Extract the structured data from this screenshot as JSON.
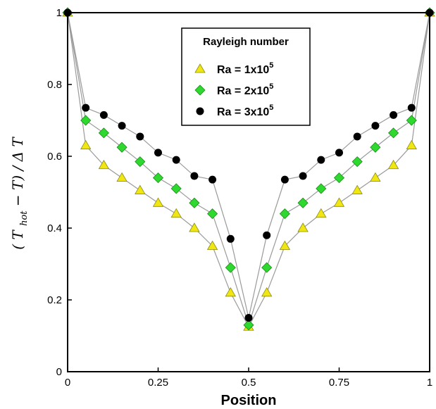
{
  "chart_data": {
    "type": "line",
    "title": "",
    "xlabel": "Position",
    "ylabel": "(T_hot − T) / ΔT",
    "ylabel_parts": {
      "open": "(",
      "T": "T",
      "sub": "hot",
      "rest": " − T) / Δ T"
    },
    "xlim": [
      0,
      1
    ],
    "ylim": [
      0,
      1
    ],
    "xticks": [
      0,
      0.25,
      0.5,
      0.75,
      1
    ],
    "xtick_labels": [
      "0",
      "0.25",
      "0.5",
      "0.75",
      "1"
    ],
    "yticks": [
      0,
      0.2,
      0.4,
      0.6,
      0.8,
      1
    ],
    "ytick_labels": [
      "0",
      "0.2",
      "0.4",
      "0.6",
      "0.8",
      "1"
    ],
    "grid": false,
    "legend": {
      "title": "Rayleigh number",
      "placement": "top-center"
    },
    "x": [
      0,
      0.05,
      0.1,
      0.15,
      0.2,
      0.25,
      0.3,
      0.35,
      0.4,
      0.45,
      0.5,
      0.55,
      0.6,
      0.65,
      0.7,
      0.75,
      0.8,
      0.85,
      0.9,
      0.95,
      1
    ],
    "series": [
      {
        "name": "Ra = 1x10^5",
        "label_base": "Ra = 1x10",
        "label_exp": "5",
        "marker": "triangle",
        "color": "#f0e614",
        "values": [
          1,
          0.63,
          0.575,
          0.54,
          0.505,
          0.47,
          0.44,
          0.4,
          0.35,
          0.22,
          0.125,
          0.22,
          0.35,
          0.4,
          0.44,
          0.47,
          0.505,
          0.54,
          0.575,
          0.63,
          1
        ]
      },
      {
        "name": "Ra = 2x10^5",
        "label_base": "Ra = 2x10",
        "label_exp": "5",
        "marker": "diamond",
        "color": "#2ed82e",
        "values": [
          1,
          0.7,
          0.665,
          0.625,
          0.585,
          0.54,
          0.51,
          0.47,
          0.44,
          0.29,
          0.13,
          0.29,
          0.44,
          0.47,
          0.51,
          0.54,
          0.585,
          0.625,
          0.665,
          0.7,
          1
        ]
      },
      {
        "name": "Ra = 3x10^5",
        "label_base": "Ra = 3x10",
        "label_exp": "5",
        "marker": "circle",
        "color": "#000000",
        "values": [
          1,
          0.735,
          0.715,
          0.685,
          0.655,
          0.61,
          0.59,
          0.545,
          0.535,
          0.37,
          0.15,
          0.38,
          0.535,
          0.545,
          0.59,
          0.61,
          0.655,
          0.685,
          0.715,
          0.735,
          1
        ]
      }
    ],
    "line_color": "#9a9a9a"
  }
}
